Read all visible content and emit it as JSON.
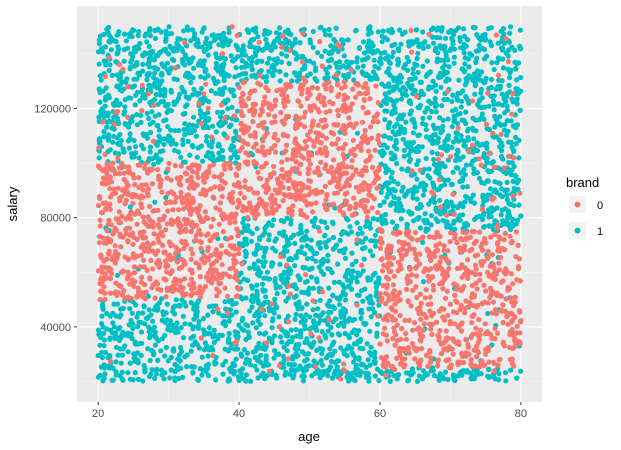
{
  "chart_data": {
    "type": "scatter",
    "xlabel": "age",
    "ylabel": "salary",
    "xlim": [
      17,
      83
    ],
    "ylim": [
      12500,
      157500
    ],
    "x_ticks": [
      20,
      40,
      60,
      80
    ],
    "x_tick_labels": [
      "20",
      "40",
      "60",
      "80"
    ],
    "y_ticks": [
      40000,
      80000,
      120000
    ],
    "y_tick_labels": [
      "40000",
      "80000",
      "120000"
    ],
    "grid": true,
    "legend": {
      "title": "brand",
      "position": "right",
      "entries": [
        {
          "label": "0",
          "color": "#F8766D"
        },
        {
          "label": "1",
          "color": "#00BFC4"
        }
      ]
    },
    "data_range": {
      "x": [
        20,
        80
      ],
      "y": [
        20000,
        150000
      ]
    },
    "series": [
      {
        "name": "0",
        "color": "#F8766D",
        "dense_regions": [
          {
            "x": [
              20,
              40
            ],
            "y": [
              50000,
              100000
            ]
          },
          {
            "x": [
              40,
              60
            ],
            "y": [
              80000,
              130000
            ]
          },
          {
            "x": [
              60,
              80
            ],
            "y": [
              25000,
              75000
            ]
          }
        ]
      },
      {
        "name": "1",
        "color": "#00BFC4",
        "dense_regions": [
          {
            "x": [
              20,
              40
            ],
            "y": [
              20000,
              50000
            ]
          },
          {
            "x": [
              20,
              40
            ],
            "y": [
              100000,
              150000
            ]
          },
          {
            "x": [
              40,
              60
            ],
            "y": [
              20000,
              80000
            ]
          },
          {
            "x": [
              40,
              60
            ],
            "y": [
              130000,
              150000
            ]
          },
          {
            "x": [
              60,
              80
            ],
            "y": [
              75000,
              150000
            ]
          }
        ]
      }
    ]
  }
}
